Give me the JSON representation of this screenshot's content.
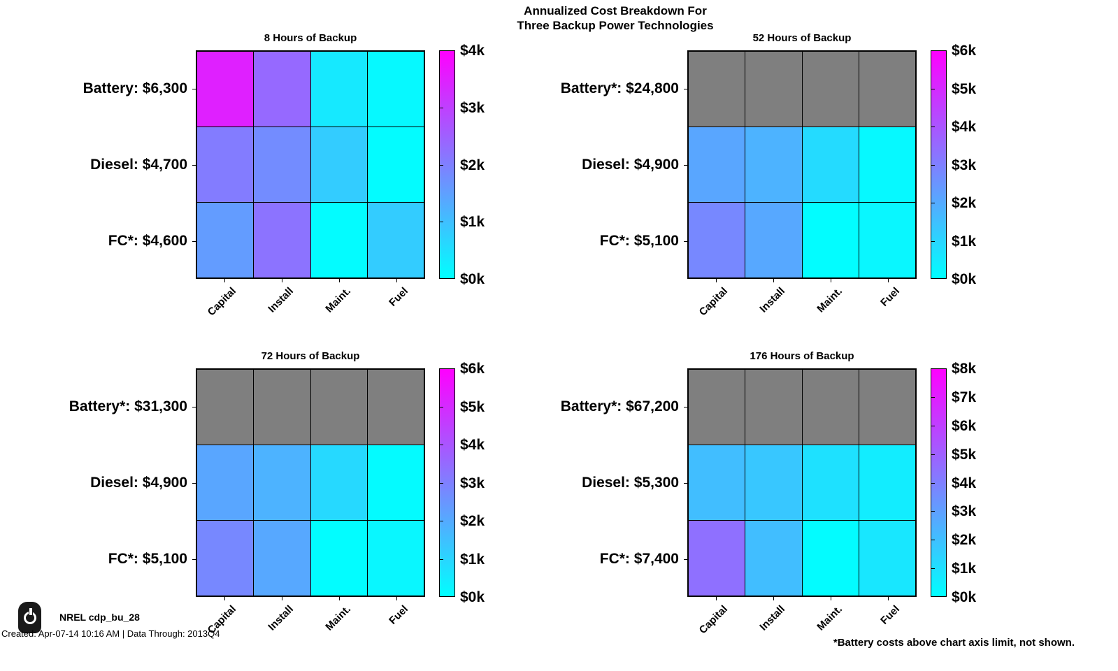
{
  "page": {
    "title_line1": "Annualized Cost Breakdown For",
    "title_line2": "Three Backup Power Technologies",
    "footnote": "*Battery costs above chart axis limit, not shown.",
    "footer": {
      "logo_icon": "power-icon",
      "product_id": "NREL cdp_bu_28",
      "created_line": "Created: Apr-07-14 10:16 AM | Data Through: 2013Q4"
    }
  },
  "colors": {
    "colormap_low": "#00FFFF",
    "colormap_high": "#FF00FF",
    "above_limit_gray": "#7F7F7F",
    "grid_line": "#000000",
    "background": "#FFFFFF",
    "text": "#000000"
  },
  "chart_data": [
    {
      "type": "heatmap",
      "title": "8 Hours of Backup",
      "columns": [
        "Capital",
        "Install",
        "Maint.",
        "Fuel"
      ],
      "rows": [
        {
          "label": "Battery: $6,300",
          "technology": "Battery",
          "total_usd": 6300,
          "above_axis_limit": false,
          "values": [
            3500,
            2350,
            350,
            100
          ]
        },
        {
          "label": "Diesel: $4,700",
          "technology": "Diesel",
          "total_usd": 4700,
          "above_axis_limit": false,
          "values": [
            2050,
            1800,
            800,
            50
          ]
        },
        {
          "label": "FC*: $4,600",
          "technology": "Fuel Cell",
          "total_usd": 4600,
          "above_axis_limit": false,
          "values": [
            1550,
            2200,
            50,
            800
          ]
        }
      ],
      "colorbar": {
        "min": 0,
        "max": 4000,
        "tick_labels": [
          "$4k",
          "$3k",
          "$2k",
          "$1k",
          "$0k"
        ]
      },
      "units": "USD per year, cell values estimated from colormap"
    },
    {
      "type": "heatmap",
      "title": "52 Hours of Backup",
      "columns": [
        "Capital",
        "Install",
        "Maint.",
        "Fuel"
      ],
      "rows": [
        {
          "label": "Battery*: $24,800",
          "technology": "Battery",
          "total_usd": 24800,
          "above_axis_limit": true,
          "values": [
            null,
            null,
            null,
            null
          ]
        },
        {
          "label": "Diesel: $4,900",
          "technology": "Diesel",
          "total_usd": 4900,
          "above_axis_limit": false,
          "values": [
            2100,
            1800,
            850,
            150
          ]
        },
        {
          "label": "FC*: $5,100",
          "technology": "Fuel Cell",
          "total_usd": 5100,
          "above_axis_limit": false,
          "values": [
            2800,
            2050,
            50,
            200
          ]
        }
      ],
      "colorbar": {
        "min": 0,
        "max": 6000,
        "tick_labels": [
          "$6k",
          "$5k",
          "$4k",
          "$3k",
          "$2k",
          "$1k",
          "$0k"
        ]
      },
      "units": "USD per year, cell values estimated from colormap"
    },
    {
      "type": "heatmap",
      "title": "72 Hours of Backup",
      "columns": [
        "Capital",
        "Install",
        "Maint.",
        "Fuel"
      ],
      "rows": [
        {
          "label": "Battery*: $31,300",
          "technology": "Battery",
          "total_usd": 31300,
          "above_axis_limit": true,
          "values": [
            null,
            null,
            null,
            null
          ]
        },
        {
          "label": "Diesel: $4,900",
          "technology": "Diesel",
          "total_usd": 4900,
          "above_axis_limit": false,
          "values": [
            2100,
            1800,
            900,
            100
          ]
        },
        {
          "label": "FC*: $5,100",
          "technology": "Fuel Cell",
          "total_usd": 5100,
          "above_axis_limit": false,
          "values": [
            2800,
            2050,
            50,
            200
          ]
        }
      ],
      "colorbar": {
        "min": 0,
        "max": 6000,
        "tick_labels": [
          "$6k",
          "$5k",
          "$4k",
          "$3k",
          "$2k",
          "$1k",
          "$0k"
        ]
      },
      "units": "USD per year, cell values estimated from colormap"
    },
    {
      "type": "heatmap",
      "title": "176 Hours of Backup",
      "columns": [
        "Capital",
        "Install",
        "Maint.",
        "Fuel"
      ],
      "rows": [
        {
          "label": "Battery*: $67,200",
          "technology": "Battery",
          "total_usd": 67200,
          "above_axis_limit": true,
          "values": [
            null,
            null,
            null,
            null
          ]
        },
        {
          "label": "Diesel: $5,300",
          "technology": "Diesel",
          "total_usd": 5300,
          "above_axis_limit": false,
          "values": [
            2050,
            1750,
            950,
            550
          ]
        },
        {
          "label": "FC*: $7,400",
          "technology": "Fuel Cell",
          "total_usd": 7400,
          "above_axis_limit": false,
          "values": [
            4500,
            2050,
            100,
            750
          ]
        }
      ],
      "colorbar": {
        "min": 0,
        "max": 8000,
        "tick_labels": [
          "$8k",
          "$7k",
          "$6k",
          "$5k",
          "$4k",
          "$3k",
          "$2k",
          "$1k",
          "$0k"
        ]
      },
      "units": "USD per year, cell values estimated from colormap"
    }
  ]
}
